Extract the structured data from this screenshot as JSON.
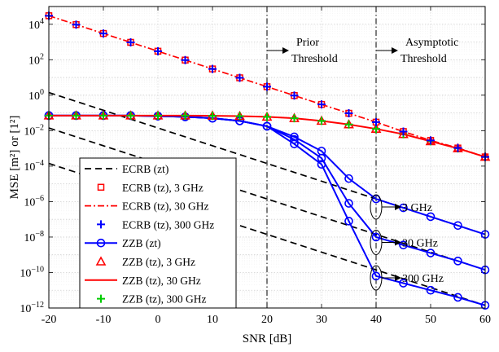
{
  "chart_data": {
    "type": "line",
    "xlabel": "SNR [dB]",
    "ylabel": "MSE [m²] or [1²]",
    "xlim": [
      -20,
      60
    ],
    "ylim_log10": [
      -12,
      5
    ],
    "log_y": true,
    "grid": true,
    "legend_position": "bottom-left",
    "x_ticks": [
      -20,
      -10,
      0,
      10,
      20,
      30,
      40,
      50,
      60
    ],
    "x_tick_labels": [
      "-20",
      "-10",
      "0",
      "10",
      "20",
      "30",
      "40",
      "50",
      "60"
    ],
    "y_tick_exponents": [
      -12,
      -10,
      -8,
      -6,
      -4,
      -2,
      0,
      2,
      4
    ],
    "y_tick_labels": [
      "10−12",
      "10−10",
      "10−8",
      "10−6",
      "10−4",
      "10−2",
      "100",
      "102",
      "104"
    ],
    "series": [
      {
        "name": "ECRB (z_t)",
        "legend_text": "ECRB (zt)",
        "color": "#000000",
        "line": "dashed",
        "marker": "none",
        "groups": [
          {
            "label": "3 GHz",
            "x": [
              -20,
              60
            ],
            "log10_y": [
              0.15,
              -7.85
            ]
          },
          {
            "label": "30 GHz",
            "x": [
              -20,
              60
            ],
            "log10_y": [
              -1.85,
              -9.85
            ]
          },
          {
            "label": "300 GHz",
            "x": [
              -20,
              60
            ],
            "log10_y": [
              -3.85,
              -11.85
            ]
          }
        ]
      },
      {
        "name": "ECRB (t_z), 3 GHz",
        "legend_text": "ECRB (tz), 3 GHz",
        "color": "#ff0000",
        "line": "none",
        "marker": "square",
        "x": [
          -20,
          -15,
          -10,
          -5,
          0,
          5,
          10,
          15,
          20,
          25,
          30,
          35,
          40,
          45,
          50,
          55,
          60
        ],
        "log10_y": [
          4.48,
          3.98,
          3.48,
          2.98,
          2.48,
          1.98,
          1.48,
          0.98,
          0.48,
          -0.02,
          -0.52,
          -1.02,
          -1.52,
          -2.05,
          -2.55,
          -2.98,
          -3.48
        ]
      },
      {
        "name": "ECRB (t_z), 30 GHz",
        "legend_text": "ECRB (tz), 30 GHz",
        "color": "#ff0000",
        "line": "dashdot",
        "marker": "none",
        "x": [
          -20,
          -15,
          -10,
          -5,
          0,
          5,
          10,
          15,
          20,
          25,
          30,
          35,
          40,
          45,
          50,
          55,
          60
        ],
        "log10_y": [
          4.48,
          3.98,
          3.48,
          2.98,
          2.48,
          1.98,
          1.48,
          0.98,
          0.48,
          -0.02,
          -0.52,
          -1.02,
          -1.52,
          -2.05,
          -2.55,
          -2.98,
          -3.48
        ]
      },
      {
        "name": "ECRB (t_z), 300 GHz",
        "legend_text": "ECRB (tz), 300 GHz",
        "color": "#0000ff",
        "line": "none",
        "marker": "plus",
        "x": [
          -20,
          -15,
          -10,
          -5,
          0,
          5,
          10,
          15,
          20,
          25,
          30,
          35,
          40,
          45,
          50,
          55,
          60
        ],
        "log10_y": [
          4.48,
          3.98,
          3.48,
          2.98,
          2.48,
          1.98,
          1.48,
          0.98,
          0.48,
          -0.02,
          -0.52,
          -1.02,
          -1.52,
          -2.05,
          -2.55,
          -2.98,
          -3.48
        ]
      },
      {
        "name": "ZZB (z_t)",
        "legend_text": "ZZB (zt)",
        "color": "#0000ff",
        "line": "solid",
        "marker": "circle",
        "groups": [
          {
            "label": "3 GHz",
            "x": [
              -20,
              -15,
              -10,
              -5,
              0,
              5,
              10,
              15,
              20,
              25,
              30,
              35,
              40,
              45,
              50,
              55,
              60
            ],
            "log10_y": [
              -1.15,
              -1.15,
              -1.15,
              -1.15,
              -1.18,
              -1.22,
              -1.3,
              -1.45,
              -1.75,
              -2.35,
              -3.15,
              -4.7,
              -5.85,
              -6.35,
              -6.85,
              -7.35,
              -7.85
            ]
          },
          {
            "label": "30 GHz",
            "x": [
              -20,
              -15,
              -10,
              -5,
              0,
              5,
              10,
              15,
              20,
              25,
              30,
              35,
              40,
              45,
              50,
              55,
              60
            ],
            "log10_y": [
              -1.15,
              -1.15,
              -1.15,
              -1.15,
              -1.18,
              -1.22,
              -1.3,
              -1.45,
              -1.75,
              -2.5,
              -3.55,
              -6.1,
              -8.0,
              -8.45,
              -8.9,
              -9.35,
              -9.85
            ]
          },
          {
            "label": "300 GHz",
            "x": [
              -20,
              -15,
              -10,
              -5,
              0,
              5,
              10,
              15,
              20,
              25,
              30,
              35,
              40,
              45,
              50,
              55,
              60
            ],
            "log10_y": [
              -1.15,
              -1.15,
              -1.15,
              -1.15,
              -1.18,
              -1.22,
              -1.3,
              -1.45,
              -1.75,
              -2.75,
              -3.9,
              -7.1,
              -10.2,
              -10.6,
              -11.0,
              -11.4,
              -11.85
            ]
          }
        ]
      },
      {
        "name": "ZZB (t_z), 3 GHz",
        "legend_text": "ZZB (tz), 3 GHz",
        "color": "#ff0000",
        "line": "none",
        "marker": "triangle",
        "x": [
          -20,
          -15,
          -10,
          -5,
          0,
          5,
          10,
          15,
          20,
          25,
          30,
          35,
          40,
          45,
          50,
          55,
          60
        ],
        "log10_y": [
          -1.15,
          -1.15,
          -1.15,
          -1.15,
          -1.15,
          -1.15,
          -1.16,
          -1.18,
          -1.22,
          -1.3,
          -1.45,
          -1.65,
          -1.9,
          -2.2,
          -2.6,
          -3.0,
          -3.48
        ]
      },
      {
        "name": "ZZB (t_z), 30 GHz",
        "legend_text": "ZZB (tz), 30 GHz",
        "color": "#ff0000",
        "line": "solid",
        "marker": "none",
        "x": [
          -20,
          -15,
          -10,
          -5,
          0,
          5,
          10,
          15,
          20,
          25,
          30,
          35,
          40,
          45,
          50,
          55,
          60
        ],
        "log10_y": [
          -1.15,
          -1.15,
          -1.15,
          -1.15,
          -1.15,
          -1.15,
          -1.16,
          -1.18,
          -1.22,
          -1.3,
          -1.45,
          -1.65,
          -1.9,
          -2.2,
          -2.6,
          -3.0,
          -3.48
        ]
      },
      {
        "name": "ZZB (t_z), 300 GHz",
        "legend_text": "ZZB (tz), 300 GHz",
        "color": "#00cc00",
        "line": "none",
        "marker": "plus",
        "x": [
          -20,
          -15,
          -10,
          -5,
          0,
          5,
          10,
          15,
          20,
          25,
          30,
          35,
          40,
          45,
          50,
          55,
          60
        ],
        "log10_y": [
          -1.15,
          -1.15,
          -1.15,
          -1.15,
          -1.15,
          -1.15,
          -1.16,
          -1.18,
          -1.22,
          -1.3,
          -1.45,
          -1.65,
          -1.9,
          -2.2,
          -2.6,
          -3.0,
          -3.48
        ]
      }
    ],
    "threshold_lines": [
      {
        "x": 20,
        "label_line1": "Prior",
        "label_line2": "Threshold"
      },
      {
        "x": 40,
        "label_line1": "Asymptotic",
        "label_line2": "Threshold"
      }
    ],
    "annotations": [
      {
        "text": "3 GHz",
        "x": 40,
        "log10_y": -6.3
      },
      {
        "text": "30 GHz",
        "x": 40,
        "log10_y": -8.3
      },
      {
        "text": "300 GHz",
        "x": 40,
        "log10_y": -10.3
      }
    ]
  }
}
